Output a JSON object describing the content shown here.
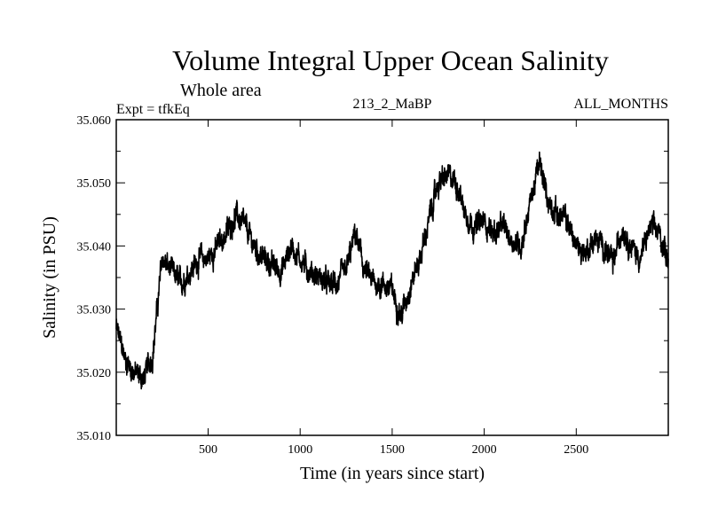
{
  "chart_data": {
    "type": "line",
    "title": "Volume Integral Upper Ocean Salinity",
    "subtitle": "Whole area",
    "expt_label": "Expt = tfkEq",
    "run_label": "213_2_MaBP",
    "months_label": "ALL_MONTHS",
    "xlabel": "Time (in years since start)",
    "ylabel": "Salinity (in PSU)",
    "xlim": [
      1,
      3000
    ],
    "ylim": [
      35.01,
      35.06
    ],
    "x_ticks": [
      500,
      1000,
      1500,
      2000,
      2500
    ],
    "x_tick_labels": [
      "500",
      "1000",
      "1500",
      "2000",
      "2500"
    ],
    "y_ticks": [
      35.01,
      35.02,
      35.03,
      35.04,
      35.05,
      35.06
    ],
    "y_tick_labels": [
      "35.010",
      "35.020",
      "35.030",
      "35.040",
      "35.050",
      "35.060"
    ],
    "grid": false,
    "line_color": "#000000",
    "series": [
      {
        "x": [
          1,
          50,
          100,
          150,
          200,
          250,
          300,
          350,
          400,
          450,
          500,
          550,
          600,
          650,
          700,
          750,
          800,
          850,
          900,
          950,
          1000,
          1050,
          1100,
          1150,
          1200,
          1250,
          1300,
          1350,
          1400,
          1450,
          1500,
          1550,
          1600,
          1650,
          1700,
          1750,
          1800,
          1850,
          1900,
          1950,
          2000,
          2050,
          2100,
          2150,
          2200,
          2250,
          2300,
          2350,
          2400,
          2450,
          2500,
          2550,
          2600,
          2650,
          2700,
          2750,
          2800,
          2850,
          2900,
          2950,
          3000
        ],
        "values": [
          35.027,
          35.022,
          35.02,
          35.019,
          35.023,
          35.038,
          35.036,
          35.034,
          35.036,
          35.038,
          35.038,
          35.04,
          35.042,
          35.045,
          35.043,
          35.04,
          35.038,
          35.037,
          35.036,
          35.04,
          35.038,
          35.036,
          35.035,
          35.034,
          35.034,
          35.036,
          35.042,
          35.036,
          35.034,
          35.034,
          35.033,
          35.029,
          35.034,
          35.038,
          35.044,
          35.05,
          35.051,
          35.05,
          35.045,
          35.043,
          35.044,
          35.042,
          35.043,
          35.041,
          35.04,
          35.047,
          35.053,
          35.047,
          35.045,
          35.044,
          35.04,
          35.039,
          35.041,
          35.04,
          35.037,
          35.043,
          35.04,
          35.038,
          35.043,
          35.042,
          35.038
        ]
      }
    ]
  }
}
